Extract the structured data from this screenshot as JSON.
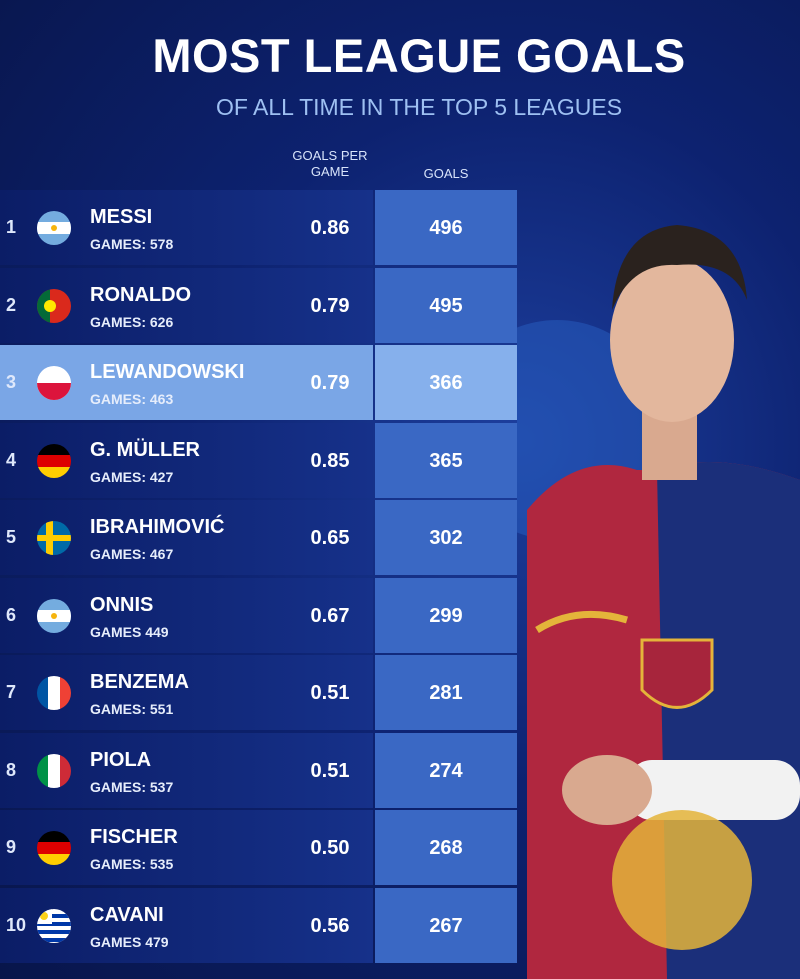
{
  "header": {
    "title": "MOST LEAGUE GOALS",
    "subtitle": "OF ALL TIME IN THE TOP 5 LEAGUES"
  },
  "table": {
    "columns": [
      "GOALS PER\nGAME",
      "GOALS"
    ],
    "rows": [
      {
        "rank": "1",
        "name": "MESSI",
        "games": "GAMES: 578",
        "goals_per_game": "0.86",
        "goals": "496"
      },
      {
        "rank": "2",
        "name": "RONALDO",
        "games": "GAMES: 626",
        "goals_per_game": "0.79",
        "goals": "495"
      },
      {
        "rank": "3",
        "name": "LEWANDOWSKI",
        "games": "GAMES: 463",
        "goals_per_game": "0.79",
        "goals": "366"
      },
      {
        "rank": "4",
        "name": "G. MÜLLER",
        "games": "GAMES: 427",
        "goals_per_game": "0.85",
        "goals": "365"
      },
      {
        "rank": "5",
        "name": "IBRAHIMOVIĆ",
        "games": "GAMES: 467",
        "goals_per_game": "0.65",
        "goals": "302"
      },
      {
        "rank": "6",
        "name": "ONNIS",
        "games": "GAMES 449",
        "goals_per_game": "0.67",
        "goals": "299"
      },
      {
        "rank": "7",
        "name": "BENZEMA",
        "games": "GAMES: 551",
        "goals_per_game": "0.51",
        "goals": "281"
      },
      {
        "rank": "8",
        "name": "PIOLA",
        "games": "GAMES: 537",
        "goals_per_game": "0.51",
        "goals": "274"
      },
      {
        "rank": "9",
        "name": "FISCHER",
        "games": "GAMES: 535",
        "goals_per_game": "0.50",
        "goals": "268"
      },
      {
        "rank": "10",
        "name": "CAVANI",
        "games": "GAMES 479",
        "goals_per_game": "0.56",
        "goals": "267"
      }
    ]
  }
}
